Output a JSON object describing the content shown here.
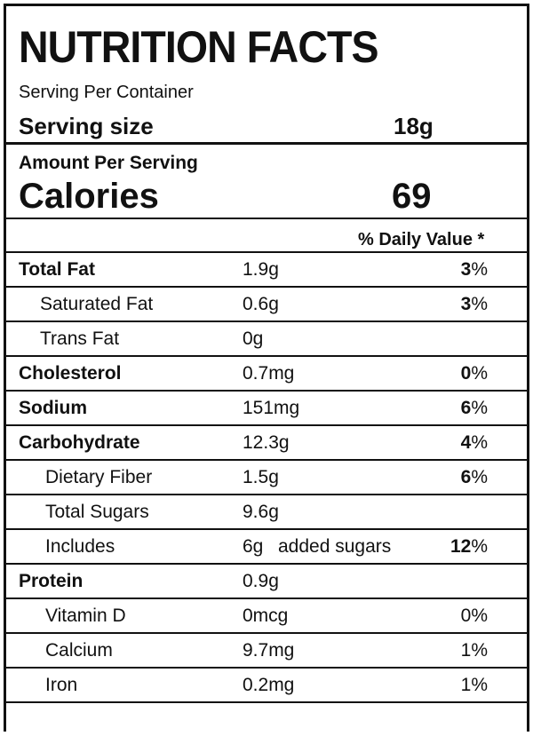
{
  "label": {
    "title": "NUTRITION FACTS",
    "serving_per_container": "Serving Per Container",
    "serving_size_label": "Serving size",
    "serving_size_value": "18g",
    "amount_per_serving": "Amount Per Serving",
    "calories_label": "Calories",
    "calories_value": "69",
    "daily_value_header": "% Daily Value *"
  },
  "rows": [
    {
      "name": "Total Fat",
      "amount": "1.9g",
      "pct_num": "3",
      "pct_sym": "%"
    },
    {
      "name": "Saturated Fat",
      "amount": "0.6g",
      "pct_num": "3",
      "pct_sym": "%"
    },
    {
      "name": "Trans Fat",
      "amount": "0g"
    },
    {
      "name": "Cholesterol",
      "amount": "0.7mg",
      "pct_num": "0",
      "pct_sym": "%"
    },
    {
      "name": "Sodium",
      "amount": "151mg",
      "pct_num": "6",
      "pct_sym": "%"
    },
    {
      "name": "Carbohydrate",
      "amount": "12.3g",
      "pct_num": "4",
      "pct_sym": "%"
    },
    {
      "name": "Dietary Fiber",
      "amount": "1.5g",
      "pct_num": "6",
      "pct_sym": "%"
    },
    {
      "name": "Total Sugars",
      "amount": "9.6g"
    },
    {
      "name": "Includes",
      "amount": "6g",
      "extra": "added sugars",
      "pct_num": "12",
      "pct_sym": "%"
    },
    {
      "name": "Protein",
      "amount": "0.9g"
    },
    {
      "name": "Vitamin D",
      "amount": "0mcg",
      "pct": "0%"
    },
    {
      "name": "Calcium",
      "amount": "9.7mg",
      "pct": "1%"
    },
    {
      "name": "Iron",
      "amount": "0.2mg",
      "pct": "1%"
    }
  ]
}
